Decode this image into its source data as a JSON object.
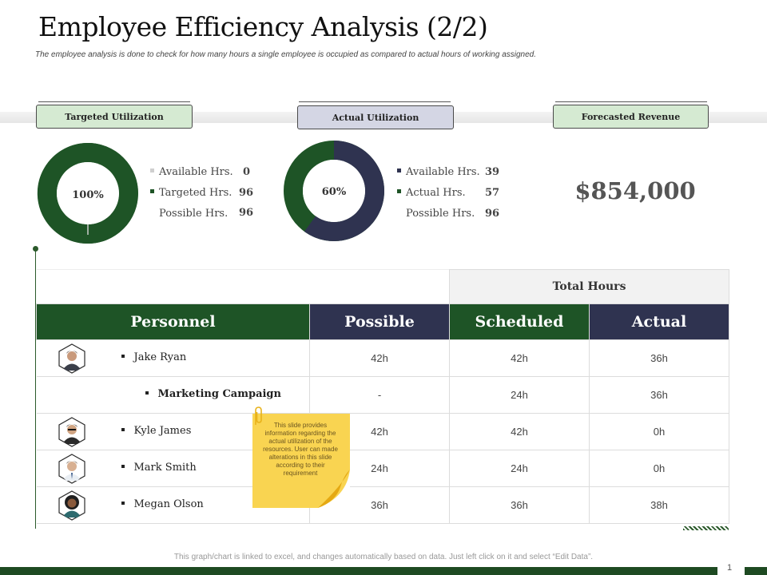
{
  "header": {
    "title": "Employee Efficiency Analysis (2/2)",
    "subtitle": "The employee analysis is done to check for how many hours a single employee is occupied as compared to actual hours of working assigned."
  },
  "cards": {
    "targeted": {
      "label": "Targeted Utilization",
      "percent_label": "100%",
      "fraction": 1.0,
      "legend": [
        {
          "label": "Available Hrs.",
          "value": "0"
        },
        {
          "label": "Targeted Hrs.",
          "value": "96"
        },
        {
          "label": "Possible Hrs.",
          "value": "96"
        }
      ]
    },
    "actual": {
      "label": "Actual Utilization",
      "percent_label": "60%",
      "fraction": 0.6,
      "legend": [
        {
          "label": "Available Hrs.",
          "value": "39"
        },
        {
          "label": "Actual Hrs.",
          "value": "57"
        },
        {
          "label": "Possible Hrs.",
          "value": "96"
        }
      ]
    },
    "forecast": {
      "label": "Forecasted Revenue",
      "value": "$854,000"
    }
  },
  "table": {
    "group_header": "Total Hours",
    "columns": [
      "Personnel",
      "Possible",
      "Scheduled",
      "Actual"
    ],
    "rows": [
      {
        "name": "Jake Ryan",
        "possible": "42h",
        "scheduled": "42h",
        "actual": "36h",
        "sub": false
      },
      {
        "name": "Marketing Campaign",
        "possible": "-",
        "scheduled": "24h",
        "actual": "36h",
        "sub": true
      },
      {
        "name": "Kyle James",
        "possible": "42h",
        "scheduled": "42h",
        "actual": "0h",
        "sub": false
      },
      {
        "name": "Mark Smith",
        "possible": "24h",
        "scheduled": "24h",
        "actual": "0h",
        "sub": false
      },
      {
        "name": "Megan Olson",
        "possible": "36h",
        "scheduled": "36h",
        "actual": "38h",
        "sub": false
      }
    ]
  },
  "sticky_note": "This slide provides information regarding the actual utilization of the resources. User can made alterations in this slide according to their requirement",
  "footer": {
    "note": "This graph/chart is linked to excel, and changes automatically based on data. Just left click on it and select “Edit Data”.",
    "page": "1"
  },
  "colors": {
    "green": "#1e5426",
    "navy": "#2f3350",
    "tag_green": "#d5ead2",
    "tag_lavender": "#d4d6e4",
    "note_yellow": "#f9d451"
  }
}
